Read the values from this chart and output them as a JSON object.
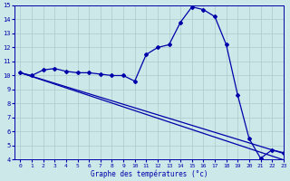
{
  "xlabel": "Graphe des températures (°c)",
  "bg_color": "#cce8e8",
  "grid_color": "#aacccc",
  "line_color": "#0000aa",
  "x_values": [
    0,
    1,
    2,
    3,
    4,
    5,
    6,
    7,
    8,
    9,
    10,
    11,
    12,
    13,
    14,
    15,
    16,
    17,
    18,
    19,
    20,
    21,
    22,
    23
  ],
  "y_main": [
    10.2,
    10.0,
    10.4,
    10.5,
    10.3,
    10.2,
    10.2,
    10.1,
    10.0,
    10.0,
    9.6,
    11.5,
    12.0,
    12.2,
    13.8,
    14.9,
    14.7,
    14.2,
    12.2,
    8.6,
    5.5,
    4.1,
    4.7,
    4.5
  ],
  "y_line1": [
    10.2,
    9.93,
    9.66,
    9.39,
    9.12,
    8.85,
    8.58,
    8.31,
    8.04,
    7.77,
    7.5,
    7.23,
    6.96,
    6.69,
    6.42,
    6.15,
    5.88,
    5.61,
    5.34,
    5.07,
    4.8,
    4.53,
    4.26,
    3.99
  ],
  "y_line2": [
    10.2,
    9.95,
    9.7,
    9.45,
    9.2,
    8.95,
    8.7,
    8.45,
    8.2,
    7.95,
    7.7,
    7.45,
    7.2,
    6.95,
    6.7,
    6.45,
    6.2,
    5.95,
    5.7,
    5.45,
    5.2,
    4.95,
    4.7,
    4.45
  ],
  "ylim": [
    4,
    15
  ],
  "xlim": [
    -0.5,
    23
  ],
  "yticks": [
    4,
    5,
    6,
    7,
    8,
    9,
    10,
    11,
    12,
    13,
    14,
    15
  ],
  "xticks": [
    0,
    1,
    2,
    3,
    4,
    5,
    6,
    7,
    8,
    9,
    10,
    11,
    12,
    13,
    14,
    15,
    16,
    17,
    18,
    19,
    20,
    21,
    22,
    23
  ]
}
